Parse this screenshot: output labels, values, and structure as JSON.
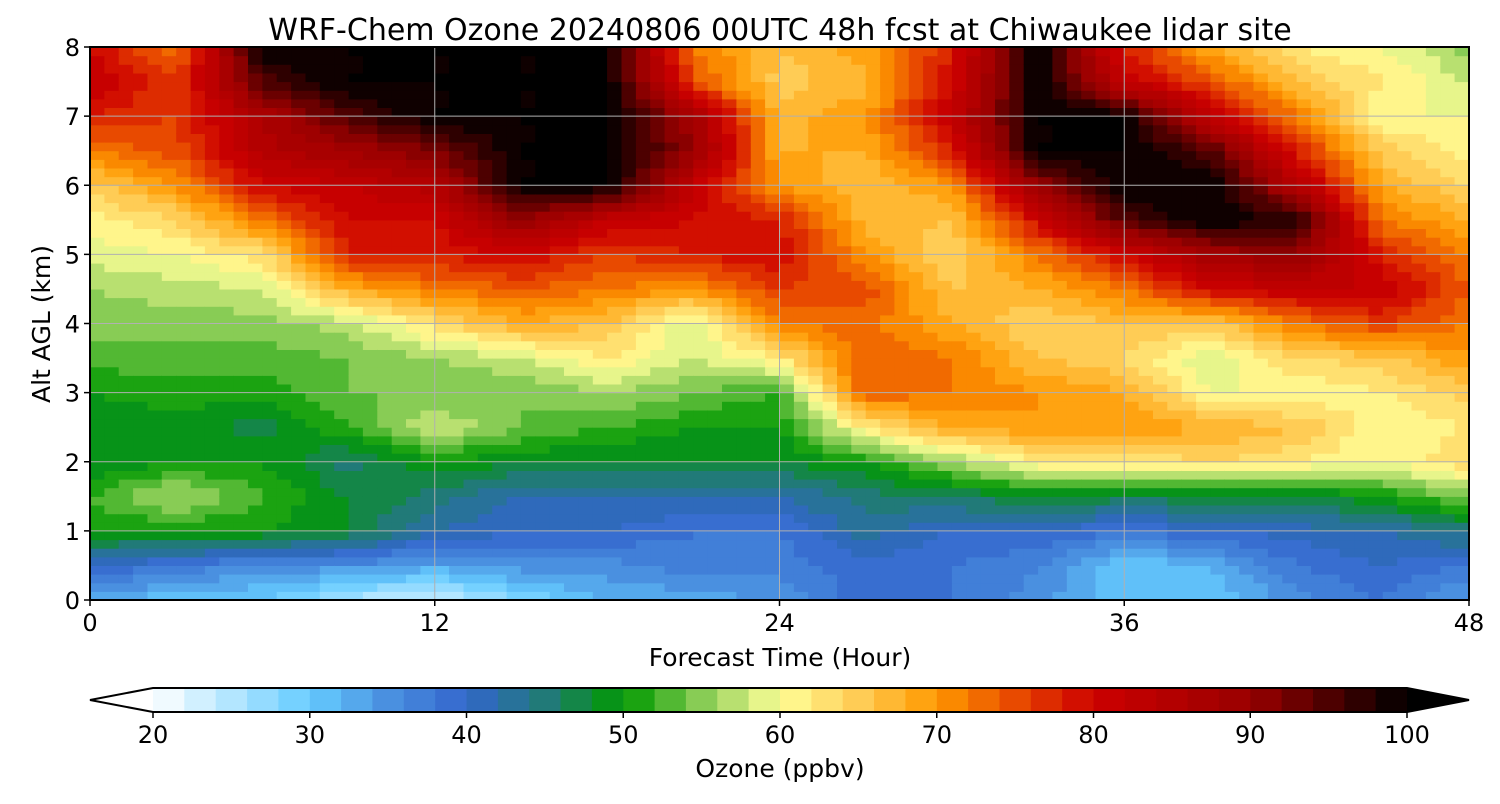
{
  "chart_data": {
    "type": "heatmap",
    "title": "WRF-Chem Ozone  20240806 00UTC 48h fcst at Chiwaukee lidar site",
    "xlabel": "Forecast Time (Hour)",
    "ylabel": "Alt AGL (km)",
    "xlim": [
      0,
      48
    ],
    "ylim": [
      0,
      8
    ],
    "xticks": [
      "0",
      "12",
      "24",
      "36",
      "48"
    ],
    "xtick_values": [
      0,
      12,
      24,
      36,
      48
    ],
    "yticks": [
      "0",
      "1",
      "2",
      "3",
      "4",
      "5",
      "6",
      "7",
      "8"
    ],
    "ytick_values": [
      0,
      1,
      2,
      3,
      4,
      5,
      6,
      7,
      8
    ],
    "grid": true,
    "x": [
      0,
      3,
      6,
      9,
      12,
      15,
      18,
      21,
      24,
      27,
      30,
      33,
      36,
      39,
      42,
      45,
      48
    ],
    "y": [
      0,
      0.5,
      1,
      1.5,
      2,
      2.5,
      3,
      3.5,
      4,
      4.5,
      5,
      5.5,
      6,
      6.5,
      7,
      7.5,
      8
    ],
    "z_by_x": [
      [
        33,
        40,
        50,
        52,
        48,
        48,
        50,
        53,
        55,
        56,
        59,
        61,
        65,
        72,
        78,
        82,
        80
      ],
      [
        30,
        38,
        50,
        57,
        50,
        49,
        51,
        53,
        55,
        57,
        60,
        64,
        70,
        75,
        76,
        76,
        72
      ],
      [
        30,
        35,
        50,
        52,
        50,
        47,
        51,
        53,
        55,
        58,
        63,
        72,
        80,
        85,
        86,
        95,
        100
      ],
      [
        25,
        35,
        48,
        48,
        45,
        52,
        54,
        54,
        57,
        68,
        78,
        80,
        82,
        88,
        95,
        100,
        100
      ],
      [
        23,
        33,
        42,
        45,
        50,
        58,
        54,
        56,
        63,
        72,
        78,
        80,
        85,
        92,
        100,
        100,
        100
      ],
      [
        28,
        35,
        40,
        42,
        48,
        54,
        54,
        58,
        68,
        74,
        80,
        90,
        100,
        100,
        100,
        100,
        100
      ],
      [
        32,
        35,
        40,
        42,
        48,
        52,
        56,
        62,
        66,
        72,
        76,
        82,
        100,
        100,
        100,
        100,
        100
      ],
      [
        33,
        37,
        38,
        42,
        48,
        50,
        54,
        58,
        58,
        70,
        78,
        80,
        82,
        90,
        88,
        75,
        72
      ],
      [
        34,
        37,
        38,
        42,
        48,
        50,
        52,
        62,
        72,
        76,
        80,
        78,
        70,
        68,
        67,
        65,
        66
      ],
      [
        40,
        39,
        43,
        45,
        50,
        62,
        74,
        74,
        73,
        75,
        70,
        67,
        66,
        68,
        70,
        67,
        69
      ],
      [
        38,
        38,
        40,
        46,
        56,
        68,
        72,
        72,
        68,
        66,
        64,
        66,
        70,
        78,
        82,
        80,
        78
      ],
      [
        35,
        36,
        40,
        48,
        62,
        70,
        70,
        66,
        64,
        68,
        72,
        80,
        90,
        100,
        100,
        100,
        100
      ],
      [
        30,
        30,
        38,
        47,
        62,
        70,
        68,
        64,
        66,
        72,
        80,
        95,
        100,
        100,
        100,
        82,
        78
      ],
      [
        30,
        32,
        40,
        47,
        64,
        68,
        60,
        58,
        65,
        80,
        88,
        100,
        100,
        95,
        82,
        75,
        68
      ],
      [
        35,
        38,
        41,
        47,
        62,
        66,
        60,
        64,
        72,
        82,
        90,
        98,
        85,
        78,
        72,
        66,
        62
      ],
      [
        38,
        40,
        42,
        50,
        60,
        60,
        62,
        65,
        76,
        82,
        78,
        72,
        68,
        65,
        60,
        62,
        60
      ],
      [
        33,
        38,
        45,
        55,
        64,
        62,
        65,
        70,
        72,
        74,
        72,
        68,
        64,
        61,
        60,
        58,
        55
      ]
    ],
    "colorbar": {
      "label": "Ozone  (ppbv)",
      "range": [
        20,
        100
      ],
      "step": 2,
      "extend": "both",
      "ticks": [
        "20",
        "30",
        "40",
        "50",
        "60",
        "70",
        "80",
        "90",
        "100"
      ],
      "tick_values": [
        20,
        30,
        40,
        50,
        60,
        70,
        80,
        90,
        100
      ],
      "color_stops": [
        [
          20,
          "#ffffff"
        ],
        [
          30,
          "#66ccff"
        ],
        [
          35,
          "#4a90e0"
        ],
        [
          40,
          "#3366cc"
        ],
        [
          45,
          "#217a78"
        ],
        [
          50,
          "#009900"
        ],
        [
          55,
          "#88cc55"
        ],
        [
          60,
          "#ffff99"
        ],
        [
          65,
          "#ffcc55"
        ],
        [
          70,
          "#ff9900"
        ],
        [
          75,
          "#e84a00"
        ],
        [
          80,
          "#cc0000"
        ],
        [
          90,
          "#990000"
        ],
        [
          100,
          "#000000"
        ]
      ]
    }
  }
}
